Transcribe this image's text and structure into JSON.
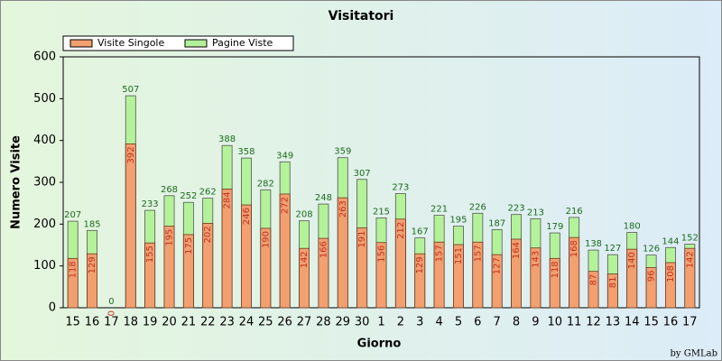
{
  "chart_data": {
    "type": "bar",
    "title": "Visitatori",
    "xlabel": "Giorno",
    "ylabel": "Numero Visite",
    "credit": "by GMLab",
    "categories": [
      "15",
      "16",
      "17",
      "18",
      "19",
      "20",
      "21",
      "22",
      "23",
      "24",
      "25",
      "26",
      "27",
      "28",
      "29",
      "30",
      "1",
      "2",
      "3",
      "4",
      "5",
      "6",
      "7",
      "8",
      "9",
      "10",
      "11",
      "12",
      "13",
      "14",
      "15",
      "16",
      "17"
    ],
    "series": [
      {
        "name": "Pagine Viste",
        "color": "#b4f29a",
        "values": [
          207,
          185,
          0,
          507,
          233,
          268,
          252,
          262,
          388,
          358,
          282,
          349,
          208,
          248,
          359,
          307,
          215,
          273,
          167,
          221,
          195,
          226,
          187,
          223,
          213,
          179,
          216,
          138,
          127,
          180,
          126,
          144,
          152
        ]
      },
      {
        "name": "Visite Singole",
        "color": "#f2a070",
        "values": [
          118,
          129,
          0,
          392,
          155,
          195,
          175,
          202,
          284,
          246,
          190,
          272,
          142,
          166,
          263,
          191,
          156,
          212,
          129,
          157,
          151,
          157,
          127,
          164,
          143,
          118,
          168,
          87,
          81,
          140,
          96,
          108,
          142
        ]
      }
    ],
    "ylim": [
      0,
      600
    ],
    "yticks": [
      0,
      100,
      200,
      300,
      400,
      500,
      600
    ],
    "grid": false
  }
}
